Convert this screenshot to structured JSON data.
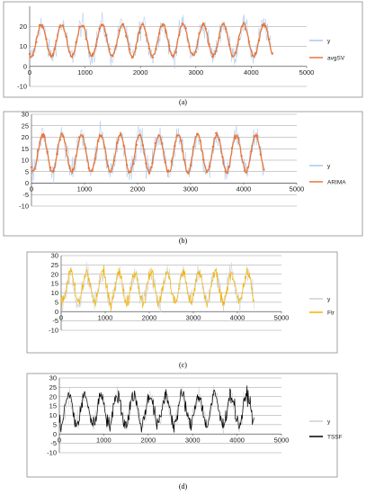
{
  "colors": {
    "y": "#a9c8ec",
    "avgSV": "#e8763a",
    "ARIMA": "#e8763a",
    "Ftr": "#f2b400",
    "TSSF": "#000000"
  },
  "chart_data": [
    {
      "panel_label": "(a)",
      "type": "line",
      "xlim": [
        0,
        5000
      ],
      "ylim": [
        -10,
        30
      ],
      "xticks": [
        "0",
        "1000",
        "2000",
        "3000",
        "4000",
        "5000"
      ],
      "yticks": [
        "-10",
        "0",
        "10",
        "20"
      ],
      "grid": true,
      "legend_position": "right",
      "series": [
        {
          "name": "y",
          "color": "#a9c8ec",
          "style": "noisy",
          "n_points": 4380,
          "period": 365,
          "min": 5,
          "max": 21,
          "noise": 4
        },
        {
          "name": "avgSV",
          "color": "#e8763a",
          "style": "smooth",
          "n_points": 4380,
          "period": 365,
          "min": 5,
          "max": 21,
          "noise": 0.8
        }
      ]
    },
    {
      "panel_label": "(b)",
      "type": "line",
      "xlim": [
        0,
        5000
      ],
      "ylim": [
        -10,
        30
      ],
      "xticks": [
        "0",
        "1000",
        "2000",
        "3000",
        "4000",
        "5000"
      ],
      "yticks": [
        "-10",
        "-5",
        "0",
        "5",
        "10",
        "15",
        "20",
        "25",
        "30"
      ],
      "grid": true,
      "legend_position": "right",
      "series": [
        {
          "name": "y",
          "color": "#a9c8ec",
          "style": "noisy",
          "n_points": 4380,
          "period": 365,
          "min": 5,
          "max": 21,
          "noise": 4
        },
        {
          "name": "ARIMA",
          "color": "#e8763a",
          "style": "smooth",
          "n_points": 4380,
          "period": 365,
          "min": 5,
          "max": 21,
          "noise": 0.8
        }
      ]
    },
    {
      "panel_label": "(c)",
      "type": "line",
      "xlim": [
        0,
        5000
      ],
      "ylim": [
        -10,
        30
      ],
      "xticks": [
        "0",
        "1000",
        "2000",
        "3000",
        "4000",
        "5000"
      ],
      "yticks": [
        "-10",
        "-5",
        "0",
        "5",
        "10",
        "15",
        "20",
        "25",
        "30"
      ],
      "grid": true,
      "legend_position": "right",
      "series": [
        {
          "name": "y",
          "color": "#d0d0d0",
          "style": "noisy",
          "n_points": 4380,
          "period": 365,
          "min": 5,
          "max": 21,
          "noise": 4
        },
        {
          "name": "Ftr",
          "color": "#f2b400",
          "style": "noisy",
          "n_points": 4380,
          "period": 365,
          "min": 5,
          "max": 21,
          "noise": 2.5
        }
      ]
    },
    {
      "panel_label": "(d)",
      "type": "line",
      "xlim": [
        0,
        5000
      ],
      "ylim": [
        -10,
        30
      ],
      "xticks": [
        "0",
        "1000",
        "2000",
        "3000",
        "4000",
        "5000"
      ],
      "yticks": [
        "-10",
        "-5",
        "0",
        "5",
        "10",
        "15",
        "20",
        "25",
        "30"
      ],
      "grid": true,
      "legend_position": "right",
      "series": [
        {
          "name": "y",
          "color": "#d0d0d0",
          "style": "noisy",
          "n_points": 4380,
          "period": 365,
          "min": 5,
          "max": 21,
          "noise": 4
        },
        {
          "name": "TSSF",
          "color": "#000000",
          "style": "noisy",
          "n_points": 4380,
          "period": 365,
          "min": 5,
          "max": 21,
          "noise": 3
        }
      ]
    }
  ]
}
